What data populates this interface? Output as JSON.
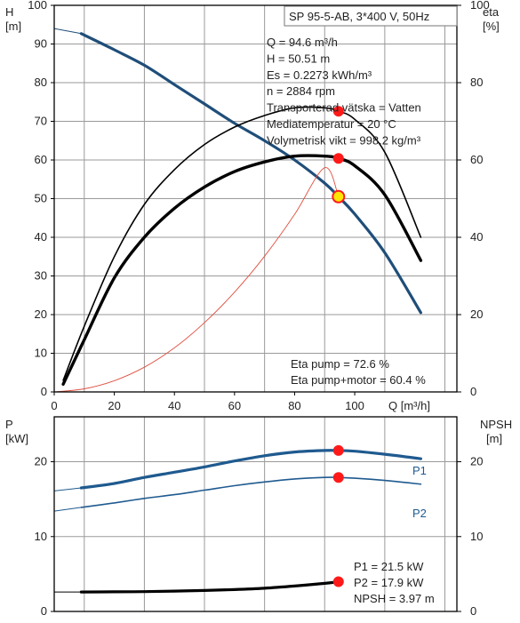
{
  "top_chart": {
    "left_axis_title": [
      "H",
      "[m]"
    ],
    "right_axis_title": [
      "eta",
      "[%]"
    ],
    "x_axis_label": "Q [m³/h]",
    "header_box": "SP 95-5-AB, 3*400 V, 50Hz",
    "info_lines": [
      "Q = 94.6 m³/h",
      "H = 50.51 m",
      "Es = 0.2273 kWh/m³",
      "n = 2884 rpm",
      "Transporterad vätska = Vatten",
      "Mediatemperatur = 20 °C",
      "Volymetrisk vikt = 998.2 kg/m³"
    ],
    "eta_lines": [
      "Eta pump = 72.6 %",
      "Eta pump+motor = 60.4 %"
    ],
    "x_ticks": [
      "0",
      "20",
      "40",
      "60",
      "80",
      "100"
    ],
    "h_ticks": [
      "0",
      "10",
      "20",
      "30",
      "40",
      "50",
      "60",
      "70",
      "80",
      "90",
      "100"
    ],
    "eta_ticks": [
      "0",
      "20",
      "40",
      "60",
      "80",
      "100"
    ]
  },
  "bottom_chart": {
    "left_axis_title": [
      "P",
      "[kW]"
    ],
    "right_axis_title": [
      "NPSH",
      "[m]"
    ],
    "left_ticks": [
      "0",
      "10",
      "20"
    ],
    "right_ticks": [
      "0",
      "10",
      "20"
    ],
    "series_labels": {
      "p1": "P1",
      "p2": "P2"
    },
    "info_lines": [
      "P1 = 21.5 kW",
      "P2 = 17.9 kW",
      "NPSH = 3.97 m"
    ]
  },
  "colors": {
    "head": "#1f4e79",
    "power": "#1f5a8f",
    "eta": "#000000",
    "system": "#e05040",
    "marker": "#ff1a1a",
    "marker_duty": "#ffe600"
  },
  "chart_data": [
    {
      "type": "line",
      "title": "SP 95-5-AB, 3*400 V, 50Hz",
      "xlabel": "Q [m³/h]",
      "ylabel": "H [m]",
      "y2label": "eta [%]",
      "xlim": [
        0,
        134
      ],
      "ylim": [
        0,
        100
      ],
      "y2lim": [
        0,
        100
      ],
      "grid": true,
      "series": [
        {
          "axis": "H",
          "style": "main",
          "x": [
            9,
            20,
            30,
            40,
            50,
            60,
            70,
            80,
            90,
            94.6,
            100,
            110,
            122
          ],
          "y": [
            92.7,
            88.5,
            84.5,
            79.5,
            74.5,
            69.5,
            65,
            60,
            54,
            50.51,
            46,
            36,
            20.5
          ]
        },
        {
          "axis": "H",
          "style": "dashed_extension",
          "x": [
            0,
            9
          ],
          "y": [
            94,
            92.7
          ]
        },
        {
          "axis": "eta",
          "style": "thin",
          "x": [
            3,
            10,
            20,
            30,
            40,
            50,
            60,
            70,
            80,
            90,
            94.6,
            100,
            110,
            122
          ],
          "y": [
            3,
            17,
            35,
            48.5,
            57.5,
            64,
            68.5,
            71.5,
            73.5,
            73.5,
            72.6,
            70.5,
            62,
            40
          ]
        },
        {
          "axis": "eta",
          "style": "bold",
          "x": [
            3,
            10,
            20,
            30,
            40,
            50,
            60,
            70,
            80,
            90,
            94.6,
            100,
            110,
            122
          ],
          "y": [
            2,
            13.5,
            29.5,
            40,
            47.5,
            53,
            57,
            59.5,
            61,
            61,
            60.4,
            58.5,
            51,
            34
          ]
        },
        {
          "axis": "H",
          "style": "system_curve",
          "x": [
            0,
            10,
            20,
            30,
            40,
            50,
            60,
            70,
            80,
            90,
            94.6
          ],
          "y": [
            0,
            0.8,
            2.9,
            6.4,
            11.4,
            17.9,
            25.8,
            35.1,
            45.9,
            58,
            50.51
          ]
        }
      ],
      "markers": [
        {
          "x": 94.6,
          "y": 50.51,
          "axis": "H",
          "role": "duty_point"
        },
        {
          "x": 94.6,
          "y": 72.6,
          "axis": "eta"
        },
        {
          "x": 94.6,
          "y": 60.4,
          "axis": "eta"
        }
      ]
    },
    {
      "type": "line",
      "xlabel": "",
      "ylabel": "P [kW]",
      "y2label": "NPSH [m]",
      "xlim": [
        0,
        134
      ],
      "ylim": [
        0,
        26
      ],
      "y2lim": [
        0,
        26
      ],
      "grid": true,
      "series": [
        {
          "name": "P1",
          "axis": "P",
          "style": "bold",
          "x": [
            9,
            20,
            30,
            40,
            50,
            60,
            70,
            80,
            90,
            94.6,
            100,
            110,
            122
          ],
          "y": [
            16.5,
            17.1,
            17.9,
            18.6,
            19.3,
            20.1,
            20.8,
            21.3,
            21.5,
            21.5,
            21.4,
            21,
            20.4
          ]
        },
        {
          "axis": "P",
          "style": "dashed_extension",
          "x": [
            0,
            9
          ],
          "y": [
            16.1,
            16.5
          ]
        },
        {
          "name": "P2",
          "axis": "P",
          "style": "thin",
          "x": [
            9,
            20,
            30,
            40,
            50,
            60,
            70,
            80,
            90,
            94.6,
            100,
            110,
            122
          ],
          "y": [
            13.9,
            14.5,
            15.1,
            15.6,
            16.2,
            16.8,
            17.3,
            17.7,
            17.9,
            17.9,
            17.8,
            17.5,
            17
          ]
        },
        {
          "axis": "P",
          "style": "dashed_extension",
          "x": [
            0,
            9
          ],
          "y": [
            13.4,
            13.9
          ]
        },
        {
          "name": "NPSH",
          "axis": "NPSH",
          "style": "bold_black",
          "x": [
            9,
            20,
            30,
            40,
            50,
            60,
            70,
            80,
            90,
            94.6
          ],
          "y": [
            2.6,
            2.62,
            2.65,
            2.72,
            2.8,
            2.92,
            3.1,
            3.4,
            3.75,
            3.97
          ]
        },
        {
          "axis": "NPSH",
          "style": "dashed_extension",
          "x": [
            0,
            9
          ],
          "y": [
            2.6,
            2.6
          ]
        }
      ],
      "markers": [
        {
          "x": 94.6,
          "y": 21.5,
          "axis": "P"
        },
        {
          "x": 94.6,
          "y": 17.9,
          "axis": "P"
        },
        {
          "x": 94.6,
          "y": 3.97,
          "axis": "NPSH"
        }
      ]
    }
  ]
}
